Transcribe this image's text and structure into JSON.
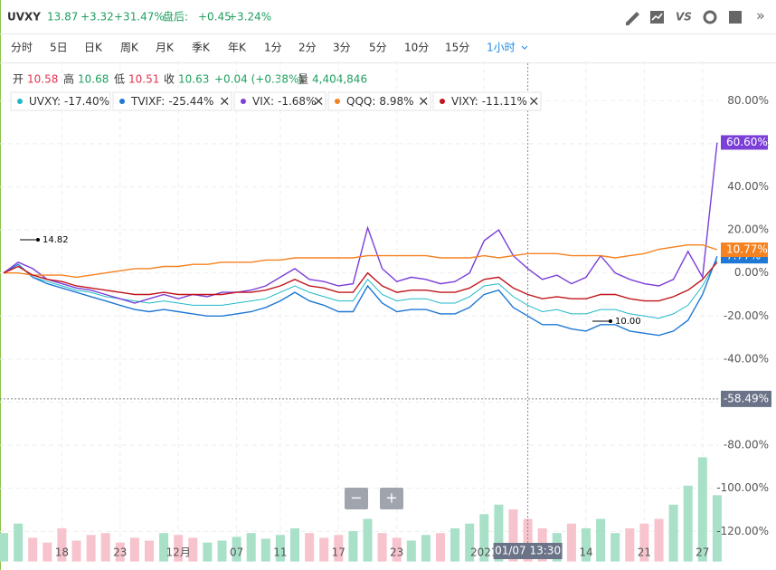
{
  "header": {
    "symbol": "UVXY",
    "price": "13.87",
    "change": "+3.32",
    "change_pct": "+31.47%",
    "after_label": "盘后:",
    "after_change": "+0.45",
    "after_pct": "+3.24%",
    "vs": "VS",
    "more": "»"
  },
  "periods": [
    "分时",
    "5日",
    "日K",
    "周K",
    "月K",
    "季K",
    "年K",
    "1分",
    "2分",
    "3分",
    "5分",
    "10分",
    "15分",
    "1小时"
  ],
  "ohlc": {
    "open_label": "开",
    "open": "10.58",
    "high_label": "高",
    "high": "10.68",
    "low_label": "低",
    "low": "10.51",
    "close_label": "收",
    "close": "10.63",
    "change": "+0.04 (+0.38%)",
    "volume_label": "量",
    "volume": "4,404,846"
  },
  "controls": [
    "−",
    "+"
  ],
  "chart_data": {
    "type": "line",
    "legend_separator": ":",
    "legend_close": "×",
    "categories": [
      null,
      null,
      null,
      null,
      "18",
      null,
      null,
      null,
      "23",
      null,
      null,
      null,
      "12月",
      null,
      null,
      null,
      "07",
      null,
      null,
      "11",
      null,
      null,
      null,
      "17",
      null,
      null,
      null,
      "23",
      null,
      null,
      null,
      null,
      null,
      "2021",
      null,
      null,
      "01/07 13:30",
      null,
      null,
      null,
      "14",
      null,
      null,
      null,
      "21",
      null,
      null,
      null,
      "27",
      null
    ],
    "series": [
      {
        "name": "UVXY",
        "legend_value": "-17.40%",
        "color": "#1fb8c9",
        "values": [
          0,
          4,
          -2,
          -4,
          -6,
          -8,
          -9,
          -11,
          -12,
          -13,
          -14,
          -13,
          -14,
          -15,
          -15,
          -15,
          -14,
          -13,
          -12,
          -9,
          -6,
          -9,
          -11,
          -13,
          -13,
          -3,
          -10,
          -13,
          -12,
          -12,
          -14,
          -14,
          -11,
          -6,
          -5,
          -11,
          -15,
          -18,
          -17,
          -19,
          -19,
          -17,
          -17,
          -19,
          -20,
          -21,
          -19,
          -15,
          -6,
          6
        ]
      },
      {
        "name": "TVIXF",
        "legend_value": "-25.44%",
        "color": "#1e78d4",
        "values": [
          0,
          4,
          -2,
          -5,
          -7,
          -9,
          -11,
          -13,
          -15,
          -17,
          -18,
          -17,
          -18,
          -19,
          -20,
          -20,
          -19,
          -18,
          -16,
          -13,
          -9,
          -13,
          -15,
          -18,
          -18,
          -6,
          -14,
          -18,
          -17,
          -17,
          -19,
          -19,
          -16,
          -10,
          -8,
          -16,
          -20,
          -24,
          -24,
          -26,
          -27,
          -24,
          -24,
          -27,
          -28,
          -29,
          -27,
          -22,
          -10,
          7.77
        ],
        "end_label": "7.77%"
      },
      {
        "name": "VIX",
        "legend_value": "-1.68%",
        "color": "#7b3fd8",
        "values": [
          0,
          5,
          2,
          -3,
          -5,
          -7,
          -8,
          -10,
          -12,
          -14,
          -12,
          -10,
          -12,
          -10,
          -11,
          -9,
          -9,
          -8,
          -6,
          -2,
          2,
          -3,
          -4,
          -6,
          -5,
          21,
          2,
          -4,
          -2,
          -3,
          -5,
          -4,
          0,
          15,
          20,
          8,
          2,
          -3,
          -1,
          -5,
          -2,
          8,
          0,
          -3,
          -5,
          -6,
          -3,
          10,
          -2,
          60.6
        ],
        "end_label": "60.60%"
      },
      {
        "name": "QQQ",
        "legend_value": "8.98%",
        "color": "#f58220",
        "values": [
          0,
          0,
          -1,
          -1,
          -1,
          -2,
          -1,
          0,
          1,
          2,
          2,
          3,
          3,
          4,
          4,
          5,
          5,
          5,
          6,
          6,
          7,
          7,
          7,
          7,
          7,
          8,
          8,
          8,
          8,
          8,
          7,
          7,
          7,
          8,
          7,
          8,
          9,
          9,
          9,
          8,
          8,
          8,
          7,
          8,
          9,
          11,
          12,
          13,
          13,
          10.77
        ],
        "end_label": "10.77%"
      },
      {
        "name": "VIXY",
        "legend_value": "-11.11%",
        "color": "#c0161c",
        "values": [
          0,
          3,
          -1,
          -3,
          -4,
          -6,
          -7,
          -8,
          -9,
          -10,
          -10,
          -9,
          -10,
          -10,
          -10,
          -10,
          -9,
          -9,
          -8,
          -6,
          -3,
          -6,
          -7,
          -9,
          -9,
          0,
          -6,
          -9,
          -8,
          -8,
          -9,
          -9,
          -7,
          -3,
          -2,
          -7,
          -10,
          -12,
          -11,
          -12,
          -12,
          -10,
          -10,
          -12,
          -13,
          -13,
          -11,
          -8,
          -3,
          5
        ]
      }
    ],
    "volume": {
      "axis": "y2",
      "up_color": "#a8e0c8",
      "down_color": "#f7c3cc",
      "values": [
        30,
        40,
        25,
        20,
        35,
        22,
        28,
        30,
        20,
        25,
        22,
        30,
        28,
        25,
        20,
        22,
        26,
        30,
        24,
        28,
        35,
        30,
        25,
        28,
        32,
        45,
        30,
        25,
        22,
        28,
        30,
        35,
        40,
        50,
        60,
        55,
        45,
        35,
        30,
        40,
        35,
        45,
        30,
        35,
        40,
        45,
        60,
        80,
        110,
        70
      ]
    },
    "ylim": [
      -134,
      86
    ],
    "y2lim": [
      0,
      500
    ],
    "yticks": [
      {
        "value": 80,
        "label": "80.00%"
      },
      {
        "value": 60,
        "label": "60.00%"
      },
      {
        "value": 40,
        "label": "40.00%"
      },
      {
        "value": 20,
        "label": "20.00%"
      },
      {
        "value": 0,
        "label": "0.00%"
      },
      {
        "value": -20,
        "label": "-20.00%"
      },
      {
        "value": -40,
        "label": "-40.00%"
      },
      {
        "value": -60,
        "label": "-60.00%"
      },
      {
        "value": -80,
        "label": "-80.00%"
      },
      {
        "value": -100,
        "label": "-100.00%"
      },
      {
        "value": -120,
        "label": "-120.00%"
      }
    ],
    "grid": true,
    "crosshair": {
      "category": "01/07 13:30",
      "value": -58.49,
      "label": "-58.49%"
    },
    "annotations": [
      {
        "text": "14.82",
        "value": 14.82
      },
      {
        "text": "10.00",
        "value": 10.0
      }
    ]
  }
}
